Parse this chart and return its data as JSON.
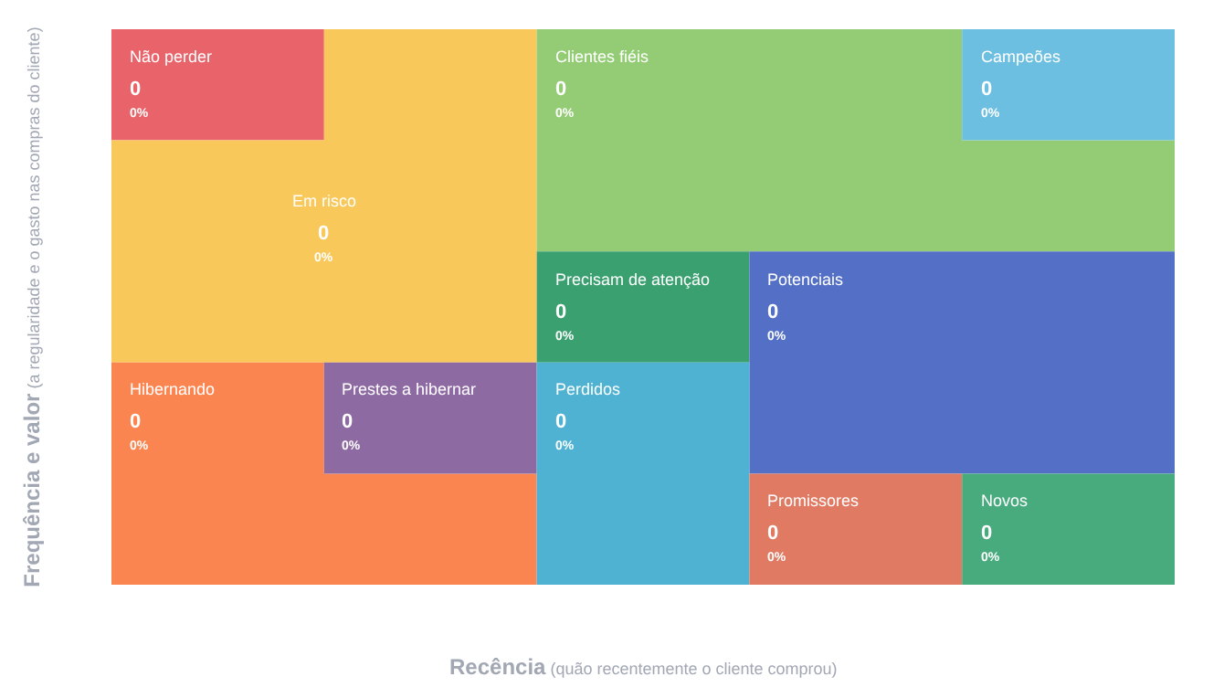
{
  "chart_data": {
    "type": "other",
    "xlabel": "Recência (quão recentemente o cliente comprou)",
    "ylabel": "Frequência e valor (a regularidade e o gasto nas compras do cliente)",
    "categories": [
      "Não perder",
      "Em risco",
      "Clientes fiéis",
      "Campeões",
      "Precisam de atenção",
      "Potenciais",
      "Hibernando",
      "Prestes a hibernar",
      "Perdidos",
      "Promissores",
      "Novos"
    ],
    "series": [
      {
        "values": [
          0,
          0,
          0,
          0,
          0,
          0,
          0,
          0,
          0,
          0,
          0
        ],
        "colors": [
          "#e9636a",
          "#f9c85a",
          "#93cc74",
          "#6cbfe0",
          "#3aa070",
          "#5470c6",
          "#fb8550",
          "#8e6aa2",
          "#4fb2d3",
          "#e07a63",
          "#48ab7e"
        ]
      },
      {
        "values": [
          0,
          0,
          0,
          0,
          0,
          0,
          0,
          0,
          0,
          0,
          0
        ],
        "value_labels": [
          "0%",
          "0%",
          "0%",
          "0%",
          "0%",
          "0%",
          "0%",
          "0%",
          "0%",
          "0%",
          "0%"
        ]
      }
    ],
    "data_labels": true
  }
}
